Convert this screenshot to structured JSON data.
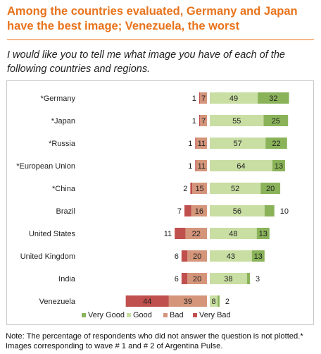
{
  "title": "Among the countries evaluated, Germany and Japan have the best image; Venezuela, the worst",
  "subtitle": "I would like you to tell me what image you have of each of the following countries and regions.",
  "note": "Note: The percentage of respondents who did not answer the question is not plotted.* Images corresponding to wave # 1 and # 2 of Argentina Pulse.",
  "colors": {
    "title": "#e8731c",
    "very_good": "#8ab359",
    "good": "#c9dea3",
    "bad": "#d4957a",
    "very_bad": "#c0504d"
  },
  "chart_data": {
    "type": "bar",
    "orientation": "horizontal-diverging-stacked",
    "categories": [
      "*Germany",
      "*Japan",
      "*Russia",
      "*European Union",
      "*China",
      "Brazil",
      "United States",
      "United Kingdom",
      "India",
      "Venezuela"
    ],
    "series": [
      {
        "name": "Very Good",
        "values": [
          32,
          25,
          22,
          13,
          20,
          10,
          13,
          13,
          3,
          2
        ]
      },
      {
        "name": "Good",
        "values": [
          49,
          55,
          57,
          64,
          52,
          56,
          48,
          43,
          38,
          8
        ]
      },
      {
        "name": "Bad",
        "values": [
          7,
          7,
          11,
          11,
          15,
          16,
          22,
          20,
          20,
          39
        ]
      },
      {
        "name": "Very Bad",
        "values": [
          1,
          1,
          1,
          1,
          2,
          7,
          11,
          6,
          6,
          44
        ]
      }
    ],
    "legend": [
      "Very Good",
      "Good",
      "Bad",
      "Very Bad"
    ],
    "legend_position": "bottom",
    "grid": false
  }
}
